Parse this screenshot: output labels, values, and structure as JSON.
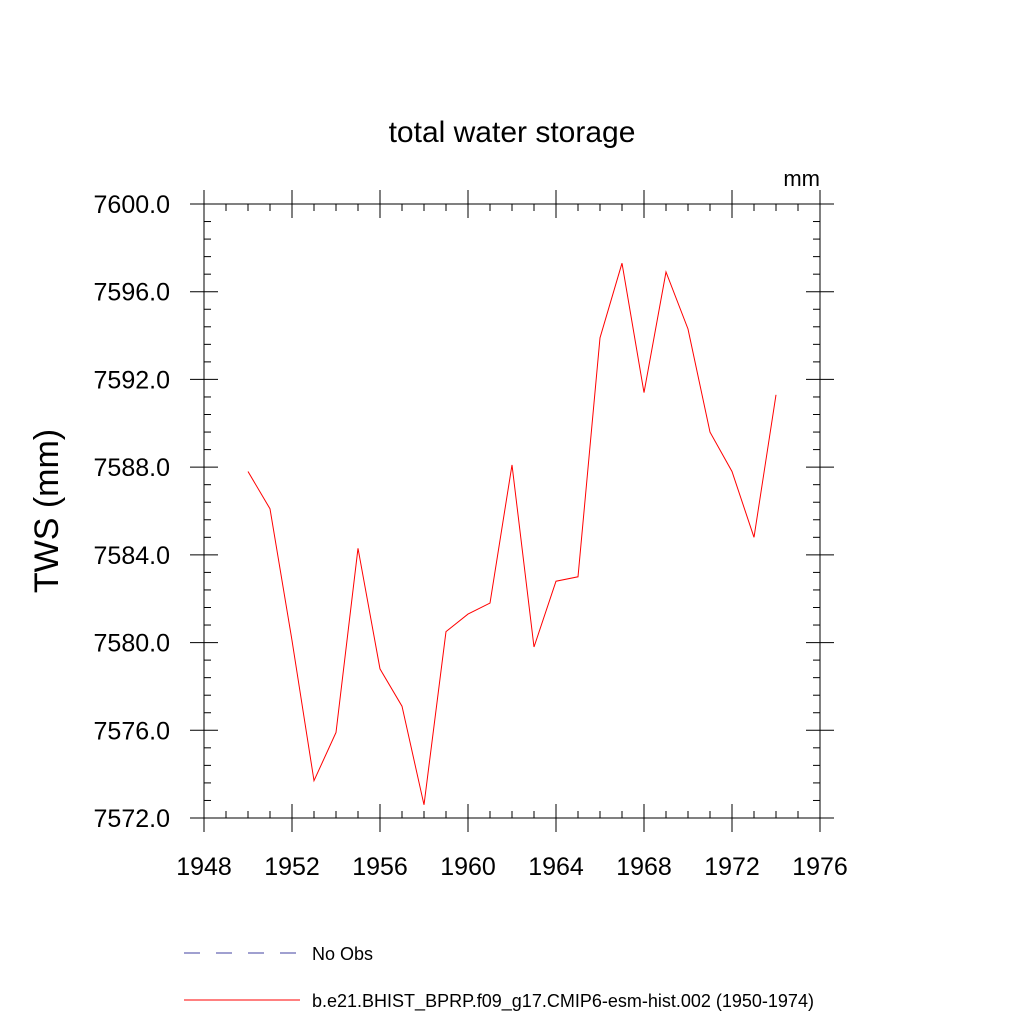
{
  "chart_data": {
    "type": "line",
    "title": "total water storage",
    "units_label": "mm",
    "ylabel": "TWS  (mm)",
    "xlabel": "",
    "xlim": [
      1948,
      1976
    ],
    "ylim": [
      7572.0,
      7600.0
    ],
    "x_ticks": [
      1948,
      1952,
      1956,
      1960,
      1964,
      1968,
      1972,
      1976
    ],
    "y_ticks": [
      7572.0,
      7576.0,
      7580.0,
      7584.0,
      7588.0,
      7592.0,
      7596.0,
      7600.0
    ],
    "x_tick_labels": [
      "1948",
      "1952",
      "1956",
      "1960",
      "1964",
      "1968",
      "1972",
      "1976"
    ],
    "y_tick_labels": [
      "7572.0",
      "7576.0",
      "7580.0",
      "7584.0",
      "7588.0",
      "7592.0",
      "7596.0",
      "7600.0"
    ],
    "grid": false,
    "legend_position": "bottom",
    "series": [
      {
        "name": "b.e21.BHIST_BPRP.f09_g17.CMIP6-esm-hist.002 (1950-1974)",
        "color": "#ff0000",
        "dash": "solid",
        "x": [
          1950,
          1951,
          1952,
          1953,
          1954,
          1955,
          1956,
          1957,
          1958,
          1959,
          1960,
          1961,
          1962,
          1963,
          1964,
          1965,
          1966,
          1967,
          1968,
          1969,
          1970,
          1971,
          1972,
          1973,
          1974
        ],
        "y": [
          7587.8,
          7586.1,
          7580.1,
          7573.7,
          7575.9,
          7584.3,
          7578.8,
          7577.1,
          7572.6,
          7580.5,
          7581.3,
          7581.8,
          7588.1,
          7579.8,
          7582.8,
          7583.0,
          7593.9,
          7597.3,
          7591.4,
          7596.9,
          7594.3,
          7589.6,
          7587.8,
          7584.8,
          7591.3
        ]
      }
    ],
    "legend": [
      {
        "label": "No Obs",
        "color": "#4040a0",
        "dash": "dashed"
      },
      {
        "label": "b.e21.BHIST_BPRP.f09_g17.CMIP6-esm-hist.002 (1950-1974)",
        "color": "#ff0000",
        "dash": "solid"
      }
    ]
  }
}
